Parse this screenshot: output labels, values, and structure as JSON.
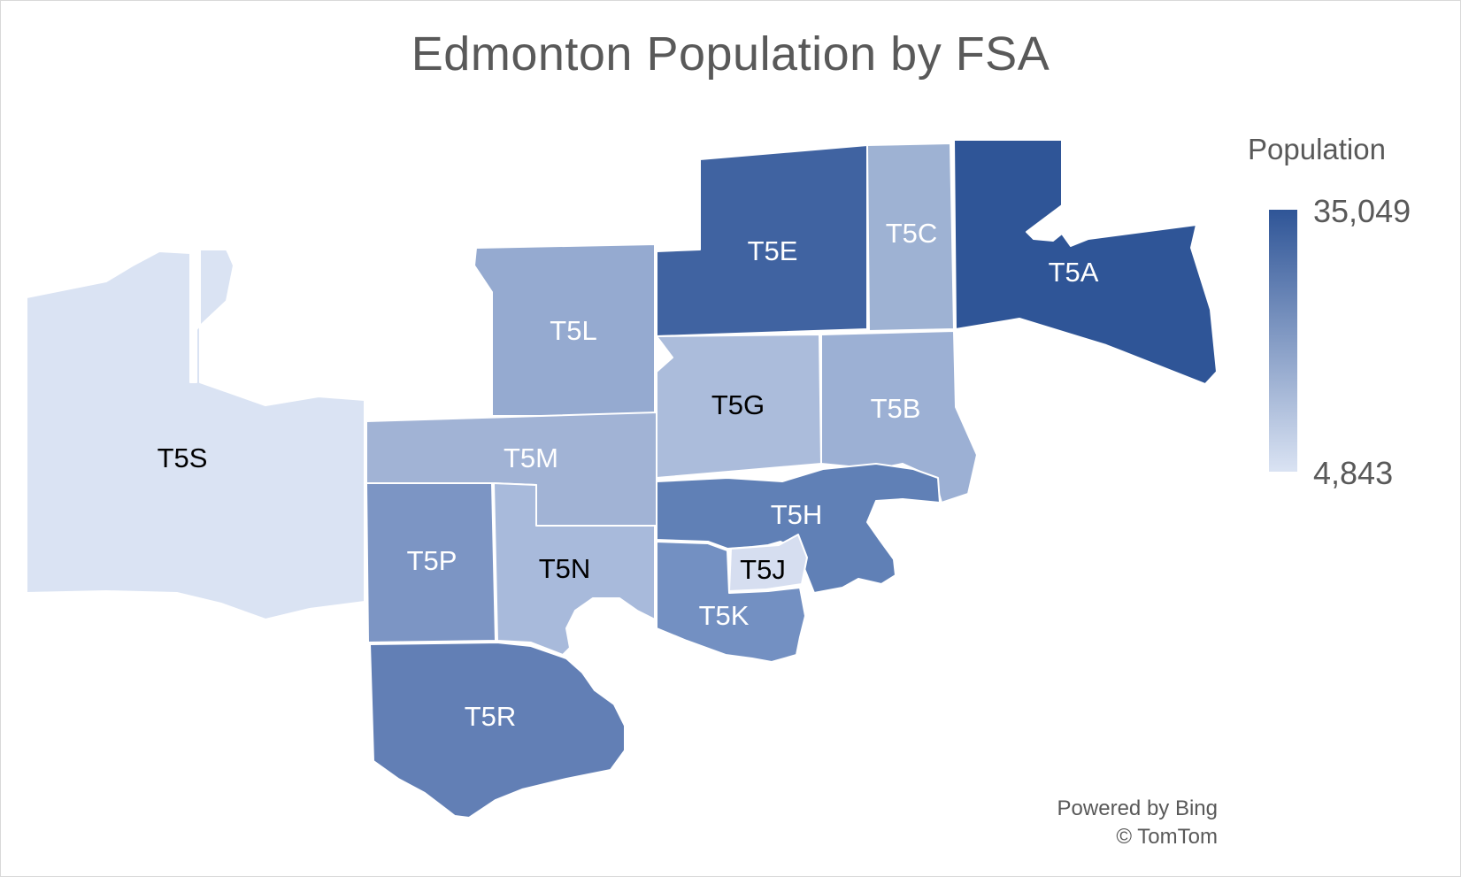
{
  "title": "Edmonton Population by FSA",
  "legend": {
    "title": "Population",
    "max_label": "35,049",
    "min_label": "4,843",
    "max_value": 35049,
    "min_value": 4843,
    "color_high": "#2f5597",
    "color_low": "#dae3f3"
  },
  "attribution": {
    "line1": "Powered by Bing",
    "line2": "© TomTom"
  },
  "regions": [
    {
      "fsa": "T5A",
      "color": "#2f5597",
      "label_color": "#ffffff"
    },
    {
      "fsa": "T5E",
      "color": "#4063a1",
      "label_color": "#ffffff"
    },
    {
      "fsa": "T5C",
      "color": "#9eb2d3",
      "label_color": "#ffffff"
    },
    {
      "fsa": "T5L",
      "color": "#95aad0",
      "label_color": "#ffffff"
    },
    {
      "fsa": "T5G",
      "color": "#abbcdb",
      "label_color": "#000000"
    },
    {
      "fsa": "T5B",
      "color": "#9cb0d4",
      "label_color": "#ffffff"
    },
    {
      "fsa": "T5M",
      "color": "#a1b3d5",
      "label_color": "#ffffff"
    },
    {
      "fsa": "T5S",
      "color": "#dae3f3",
      "label_color": "#000000"
    },
    {
      "fsa": "T5P",
      "color": "#7c95c4",
      "label_color": "#ffffff"
    },
    {
      "fsa": "T5N",
      "color": "#a8badb",
      "label_color": "#000000"
    },
    {
      "fsa": "T5H",
      "color": "#6080b6",
      "label_color": "#ffffff"
    },
    {
      "fsa": "T5J",
      "color": "#d6def0",
      "label_color": "#000000"
    },
    {
      "fsa": "T5K",
      "color": "#7390c2",
      "label_color": "#ffffff"
    },
    {
      "fsa": "T5R",
      "color": "#627fb5",
      "label_color": "#ffffff"
    }
  ]
}
